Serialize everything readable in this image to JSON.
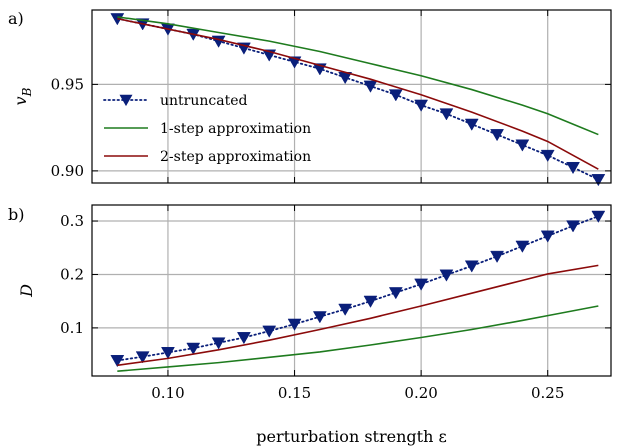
{
  "chart_data": [
    {
      "type": "line",
      "panel_label": "a)",
      "ylabel": "v_B",
      "ylabel_symbol": "v",
      "ylabel_subscript": "B",
      "xlim": [
        0.07,
        0.275
      ],
      "ylim": [
        0.893,
        0.993
      ],
      "xticks": [
        0.1,
        0.15,
        0.2,
        0.25
      ],
      "xtick_labels": [
        "",
        "",
        "",
        ""
      ],
      "yticks": [
        0.9,
        0.95
      ],
      "ytick_labels": [
        "0.90",
        "0.95"
      ],
      "grid": true,
      "legend_position": "lower-left",
      "series": [
        {
          "name": "untruncated",
          "style": "dotted-triangle",
          "color": "#0a1f7a",
          "x": [
            0.08,
            0.09,
            0.1,
            0.11,
            0.12,
            0.13,
            0.14,
            0.15,
            0.16,
            0.17,
            0.18,
            0.19,
            0.2,
            0.21,
            0.22,
            0.23,
            0.24,
            0.25,
            0.26,
            0.27
          ],
          "y": [
            0.988,
            0.985,
            0.982,
            0.979,
            0.975,
            0.971,
            0.967,
            0.963,
            0.959,
            0.954,
            0.949,
            0.944,
            0.938,
            0.933,
            0.927,
            0.921,
            0.915,
            0.909,
            0.902,
            0.895
          ]
        },
        {
          "name": "1-step approximation",
          "style": "solid",
          "color": "#1e7b1e",
          "x": [
            0.08,
            0.1,
            0.12,
            0.14,
            0.16,
            0.18,
            0.2,
            0.22,
            0.24,
            0.25,
            0.27
          ],
          "y": [
            0.989,
            0.985,
            0.98,
            0.975,
            0.969,
            0.962,
            0.955,
            0.947,
            0.938,
            0.933,
            0.921
          ]
        },
        {
          "name": "2-step approximation",
          "style": "solid",
          "color": "#8b0a0a",
          "x": [
            0.08,
            0.1,
            0.12,
            0.14,
            0.16,
            0.18,
            0.2,
            0.22,
            0.24,
            0.25,
            0.27
          ],
          "y": [
            0.988,
            0.982,
            0.976,
            0.969,
            0.961,
            0.953,
            0.944,
            0.934,
            0.923,
            0.917,
            0.901
          ]
        }
      ]
    },
    {
      "type": "line",
      "panel_label": "b)",
      "ylabel": "D",
      "xlabel": "perturbation strength ε",
      "xlim": [
        0.07,
        0.275
      ],
      "ylim": [
        0.01,
        0.33
      ],
      "xticks": [
        0.1,
        0.15,
        0.2,
        0.25
      ],
      "xtick_labels": [
        "0.10",
        "0.15",
        "0.20",
        "0.25"
      ],
      "yticks": [
        0.1,
        0.2,
        0.3
      ],
      "ytick_labels": [
        "0.1",
        "0.2",
        "0.3"
      ],
      "grid": true,
      "series": [
        {
          "name": "untruncated",
          "style": "dotted-triangle",
          "color": "#0a1f7a",
          "x": [
            0.08,
            0.09,
            0.1,
            0.11,
            0.12,
            0.13,
            0.14,
            0.15,
            0.16,
            0.17,
            0.18,
            0.19,
            0.2,
            0.21,
            0.22,
            0.23,
            0.24,
            0.25,
            0.26,
            0.27
          ],
          "y": [
            0.039,
            0.046,
            0.054,
            0.062,
            0.072,
            0.082,
            0.094,
            0.107,
            0.121,
            0.135,
            0.15,
            0.166,
            0.182,
            0.199,
            0.216,
            0.234,
            0.253,
            0.272,
            0.291,
            0.309
          ]
        },
        {
          "name": "1-step approximation",
          "style": "solid",
          "color": "#1e7b1e",
          "x": [
            0.08,
            0.1,
            0.12,
            0.14,
            0.16,
            0.18,
            0.2,
            0.22,
            0.24,
            0.25,
            0.27
          ],
          "y": [
            0.019,
            0.027,
            0.035,
            0.045,
            0.055,
            0.068,
            0.082,
            0.097,
            0.114,
            0.123,
            0.141
          ]
        },
        {
          "name": "2-step approximation",
          "style": "solid",
          "color": "#8b0a0a",
          "x": [
            0.08,
            0.1,
            0.12,
            0.14,
            0.16,
            0.18,
            0.2,
            0.22,
            0.24,
            0.25,
            0.27
          ],
          "y": [
            0.03,
            0.043,
            0.059,
            0.077,
            0.097,
            0.118,
            0.141,
            0.165,
            0.189,
            0.201,
            0.217
          ]
        }
      ]
    }
  ]
}
